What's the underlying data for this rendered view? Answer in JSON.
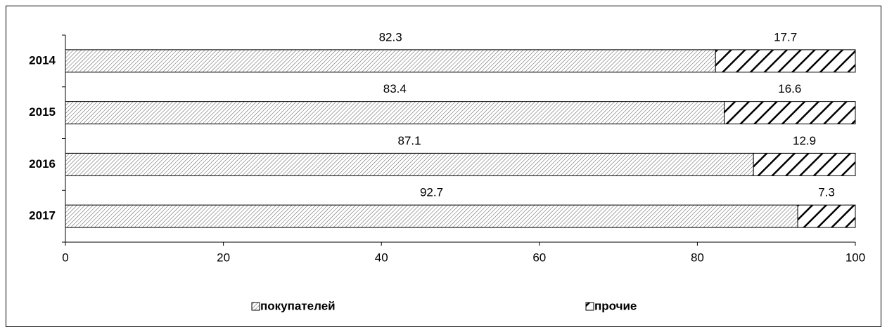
{
  "chart_data": {
    "type": "bar",
    "orientation": "horizontal",
    "stacked": true,
    "categories": [
      "2014",
      "2015",
      "2016",
      "2017"
    ],
    "series": [
      {
        "name": "покупателей",
        "color": "#555555",
        "values": [
          82.3,
          83.4,
          87.1,
          92.7
        ]
      },
      {
        "name": "прочие",
        "color": "#000000",
        "values": [
          17.7,
          16.6,
          12.9,
          7.3
        ]
      }
    ],
    "xlim": [
      0,
      100
    ],
    "xticks": [
      0,
      20,
      40,
      60,
      80,
      100
    ],
    "grid": false,
    "legend": "bottom"
  }
}
